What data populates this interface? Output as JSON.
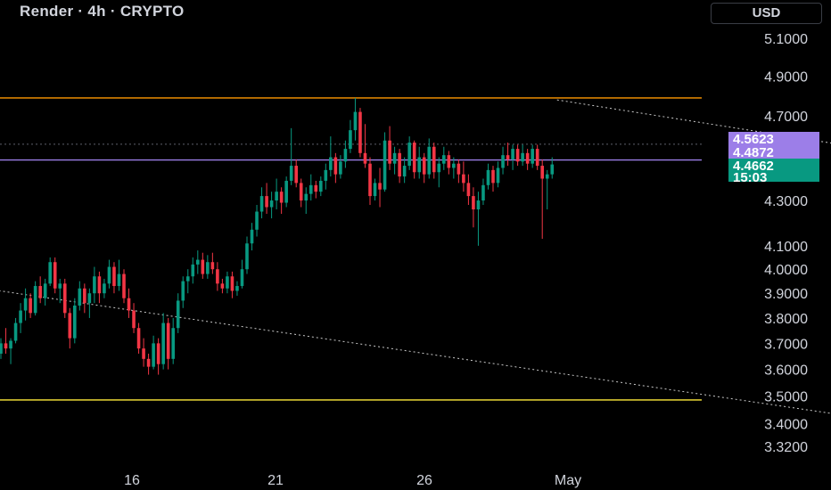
{
  "header": {
    "title": "Render · 4h · CRYPTO",
    "currency_label": "USD"
  },
  "colors": {
    "background": "#000000",
    "up": "#089981",
    "down": "#f23645",
    "resistance": "#ff9800",
    "support": "#ffeb3b",
    "purple_line": "#9c7ee8",
    "grid_text": "#d1d4dc"
  },
  "chart_data": {
    "type": "candlestick",
    "title": "Render · 4h · CRYPTO",
    "y_axis": {
      "position": "right",
      "scale": "log",
      "range": [
        3.25,
        5.2
      ],
      "tick_labels": [
        "5.1000",
        "4.9000",
        "4.7000",
        "4.3000",
        "4.1000",
        "4.0000",
        "3.9000",
        "3.8000",
        "3.7000",
        "3.6000",
        "3.5000",
        "3.4000",
        "3.3200"
      ]
    },
    "x_axis": {
      "tick_labels": [
        "16",
        "21",
        "26",
        "May"
      ]
    },
    "price_labels": [
      {
        "value": "4.5623",
        "color": "#9c7ee8"
      },
      {
        "value": "4.4872",
        "color": "#9c7ee8"
      },
      {
        "value": "4.4662",
        "sub": "15:03",
        "color": "#089981"
      }
    ],
    "horizontal_lines": [
      {
        "price": 4.7899,
        "color": "#ff9800",
        "style": "solid"
      },
      {
        "price": 3.486,
        "color": "#ffeb3b",
        "style": "solid"
      },
      {
        "price": 4.5623,
        "color": "#5d606b",
        "style": "dotted"
      },
      {
        "price": 4.4872,
        "color": "#9c7ee8",
        "style": "solid"
      }
    ],
    "trend_lines": [
      {
        "from": {
          "bar": -30,
          "price": 4.0
        },
        "to": {
          "bar": 230,
          "price": 3.28
        },
        "style": "dotted"
      },
      {
        "from": {
          "bar": 113,
          "price": 4.78
        },
        "to": {
          "bar": 198,
          "price": 4.46
        },
        "style": "dotted"
      }
    ],
    "candles": [
      [
        3.66,
        3.72,
        3.64,
        3.7
      ],
      [
        3.7,
        3.76,
        3.66,
        3.68
      ],
      [
        3.68,
        3.72,
        3.62,
        3.71
      ],
      [
        3.71,
        3.8,
        3.7,
        3.78
      ],
      [
        3.78,
        3.86,
        3.74,
        3.83
      ],
      [
        3.83,
        3.92,
        3.79,
        3.88
      ],
      [
        3.88,
        3.9,
        3.8,
        3.82
      ],
      [
        3.82,
        3.95,
        3.81,
        3.93
      ],
      [
        3.93,
        3.97,
        3.86,
        3.88
      ],
      [
        3.88,
        3.96,
        3.85,
        3.94
      ],
      [
        3.94,
        4.05,
        3.93,
        4.03
      ],
      [
        4.03,
        4.05,
        3.9,
        3.92
      ],
      [
        3.92,
        3.96,
        3.86,
        3.94
      ],
      [
        3.94,
        3.96,
        3.8,
        3.82
      ],
      [
        3.82,
        3.84,
        3.68,
        3.72
      ],
      [
        3.72,
        3.88,
        3.7,
        3.85
      ],
      [
        3.85,
        3.95,
        3.83,
        3.92
      ],
      [
        3.92,
        3.94,
        3.82,
        3.86
      ],
      [
        3.86,
        3.92,
        3.8,
        3.9
      ],
      [
        3.9,
        4.01,
        3.86,
        3.97
      ],
      [
        3.97,
        3.99,
        3.86,
        3.9
      ],
      [
        3.9,
        3.96,
        3.88,
        3.94
      ],
      [
        3.94,
        4.04,
        3.92,
        4.01
      ],
      [
        4.01,
        4.03,
        3.9,
        3.93
      ],
      [
        3.93,
        4.04,
        3.91,
        3.98
      ],
      [
        3.98,
        4.0,
        3.86,
        3.88
      ],
      [
        3.88,
        3.92,
        3.8,
        3.83
      ],
      [
        3.83,
        3.86,
        3.74,
        3.76
      ],
      [
        3.76,
        3.78,
        3.66,
        3.68
      ],
      [
        3.68,
        3.72,
        3.61,
        3.64
      ],
      [
        3.64,
        3.66,
        3.58,
        3.61
      ],
      [
        3.61,
        3.73,
        3.6,
        3.7
      ],
      [
        3.7,
        3.72,
        3.58,
        3.62
      ],
      [
        3.62,
        3.82,
        3.6,
        3.78
      ],
      [
        3.78,
        3.8,
        3.6,
        3.64
      ],
      [
        3.64,
        3.8,
        3.62,
        3.76
      ],
      [
        3.76,
        3.9,
        3.74,
        3.87
      ],
      [
        3.87,
        3.97,
        3.84,
        3.95
      ],
      [
        3.95,
        4.0,
        3.9,
        3.97
      ],
      [
        3.97,
        4.05,
        3.94,
        4.02
      ],
      [
        4.02,
        4.08,
        3.98,
        4.04
      ],
      [
        4.04,
        4.07,
        3.96,
        3.98
      ],
      [
        3.98,
        4.06,
        3.96,
        4.03
      ],
      [
        4.03,
        4.07,
        3.98,
        4.0
      ],
      [
        4.0,
        4.03,
        3.91,
        3.94
      ],
      [
        3.94,
        3.96,
        3.9,
        3.92
      ],
      [
        3.92,
        3.99,
        3.9,
        3.97
      ],
      [
        3.97,
        3.99,
        3.88,
        3.91
      ],
      [
        3.91,
        3.95,
        3.89,
        3.93
      ],
      [
        3.93,
        4.04,
        3.92,
        4.0
      ],
      [
        4.0,
        4.14,
        3.98,
        4.11
      ],
      [
        4.11,
        4.2,
        4.08,
        4.17
      ],
      [
        4.17,
        4.28,
        4.14,
        4.25
      ],
      [
        4.25,
        4.36,
        4.22,
        4.32
      ],
      [
        4.32,
        4.38,
        4.24,
        4.27
      ],
      [
        4.27,
        4.34,
        4.22,
        4.3
      ],
      [
        4.3,
        4.4,
        4.26,
        4.34
      ],
      [
        4.34,
        4.36,
        4.24,
        4.29
      ],
      [
        4.29,
        4.41,
        4.27,
        4.39
      ],
      [
        4.39,
        4.64,
        4.37,
        4.46
      ],
      [
        4.46,
        4.49,
        4.36,
        4.38
      ],
      [
        4.38,
        4.4,
        4.27,
        4.3
      ],
      [
        4.3,
        4.36,
        4.24,
        4.33
      ],
      [
        4.33,
        4.42,
        4.3,
        4.37
      ],
      [
        4.37,
        4.39,
        4.31,
        4.34
      ],
      [
        4.34,
        4.41,
        4.32,
        4.39
      ],
      [
        4.39,
        4.47,
        4.35,
        4.44
      ],
      [
        4.44,
        4.6,
        4.41,
        4.5
      ],
      [
        4.5,
        4.52,
        4.38,
        4.42
      ],
      [
        4.42,
        4.51,
        4.4,
        4.48
      ],
      [
        4.48,
        4.58,
        4.45,
        4.54
      ],
      [
        4.54,
        4.68,
        4.52,
        4.63
      ],
      [
        4.63,
        4.79,
        4.58,
        4.72
      ],
      [
        4.72,
        4.74,
        4.5,
        4.52
      ],
      [
        4.52,
        4.66,
        4.45,
        4.47
      ],
      [
        4.47,
        4.5,
        4.28,
        4.32
      ],
      [
        4.32,
        4.4,
        4.3,
        4.38
      ],
      [
        4.38,
        4.45,
        4.27,
        4.35
      ],
      [
        4.35,
        4.62,
        4.34,
        4.58
      ],
      [
        4.58,
        4.65,
        4.44,
        4.47
      ],
      [
        4.47,
        4.55,
        4.42,
        4.52
      ],
      [
        4.52,
        4.54,
        4.38,
        4.41
      ],
      [
        4.41,
        4.5,
        4.38,
        4.46
      ],
      [
        4.46,
        4.6,
        4.44,
        4.57
      ],
      [
        4.57,
        4.58,
        4.4,
        4.43
      ],
      [
        4.43,
        4.55,
        4.4,
        4.5
      ],
      [
        4.5,
        4.52,
        4.38,
        4.42
      ],
      [
        4.42,
        4.59,
        4.4,
        4.55
      ],
      [
        4.55,
        4.57,
        4.4,
        4.43
      ],
      [
        4.43,
        4.5,
        4.36,
        4.47
      ],
      [
        4.47,
        4.55,
        4.44,
        4.51
      ],
      [
        4.51,
        4.53,
        4.42,
        4.45
      ],
      [
        4.45,
        4.5,
        4.4,
        4.47
      ],
      [
        4.47,
        4.49,
        4.38,
        4.42
      ],
      [
        4.42,
        4.48,
        4.34,
        4.38
      ],
      [
        4.38,
        4.42,
        4.28,
        4.32
      ],
      [
        4.32,
        4.36,
        4.18,
        4.26
      ],
      [
        4.26,
        4.34,
        4.1,
        4.3
      ],
      [
        4.3,
        4.4,
        4.28,
        4.37
      ],
      [
        4.37,
        4.47,
        4.35,
        4.44
      ],
      [
        4.44,
        4.46,
        4.34,
        4.38
      ],
      [
        4.38,
        4.48,
        4.36,
        4.45
      ],
      [
        4.45,
        4.55,
        4.42,
        4.51
      ],
      [
        4.51,
        4.57,
        4.46,
        4.49
      ],
      [
        4.49,
        4.56,
        4.44,
        4.54
      ],
      [
        4.54,
        4.56,
        4.46,
        4.48
      ],
      [
        4.48,
        4.56,
        4.46,
        4.52
      ],
      [
        4.52,
        4.54,
        4.44,
        4.47
      ],
      [
        4.47,
        4.56,
        4.45,
        4.54
      ],
      [
        4.54,
        4.56,
        4.44,
        4.46
      ],
      [
        4.46,
        4.49,
        4.13,
        4.4
      ],
      [
        4.4,
        4.44,
        4.26,
        4.42
      ],
      [
        4.42,
        4.5,
        4.4,
        4.4662
      ]
    ]
  }
}
